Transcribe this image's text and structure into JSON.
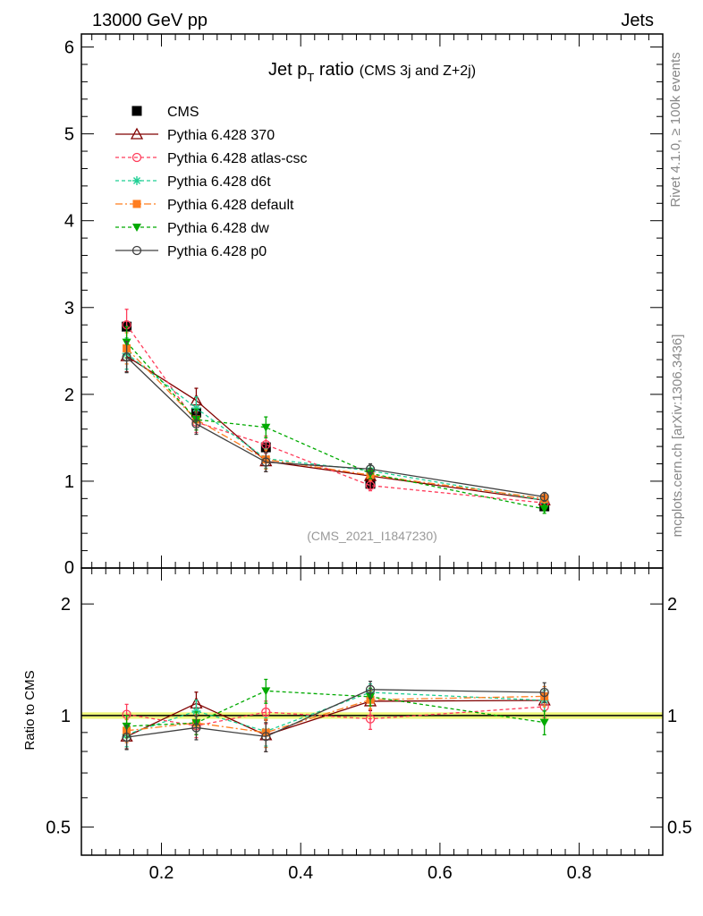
{
  "header": {
    "left": "13000 GeV pp",
    "right": "Jets"
  },
  "side_labels": {
    "rivet": "Rivet 4.1.0, ≥ 100k events",
    "mcplots": "mcplots.cern.ch [arXiv:1306.3436]"
  },
  "chart_data": {
    "type": "line",
    "title_main": "Jet p",
    "title_sub": "T",
    "title_rest": " ratio",
    "title_note": "(CMS 3j and Z+2j)",
    "analysis_id": "(CMS_2021_I1847230)",
    "ratio_ylabel": "Ratio to CMS",
    "xlim": [
      0.085,
      0.92
    ],
    "main_ylim": [
      0,
      6.15
    ],
    "ratio_ylim": [
      0.42,
      2.5
    ],
    "x_ticks": [
      0.2,
      0.4,
      0.6,
      0.8
    ],
    "x_tick_labels": [
      "0.2",
      "0.4",
      "0.6",
      "0.8"
    ],
    "main_y_ticks": [
      1,
      2,
      3,
      4,
      5,
      6
    ],
    "main_y_tick_labels": [
      "1",
      "2",
      "3",
      "4",
      "5",
      "6"
    ],
    "main_y_zero_label": "0",
    "ratio_y_ticks": [
      0.5,
      1,
      2
    ],
    "ratio_y_tick_labels": [
      "0.5",
      "1",
      "2"
    ],
    "x": [
      0.15,
      0.25,
      0.35,
      0.5,
      0.75
    ],
    "data": {
      "name": "CMS",
      "values": [
        2.78,
        1.79,
        1.39,
        0.97,
        0.71
      ],
      "errors": [
        0.05,
        0.05,
        0.04,
        0.04,
        0.03
      ],
      "color": "#000000"
    },
    "series": [
      {
        "name": "Pythia 6.428 370",
        "color": "#800000",
        "marker": "triangle-open",
        "dash": "",
        "values": [
          2.44,
          1.93,
          1.23,
          1.06,
          0.78
        ],
        "errors": [
          0.18,
          0.14,
          0.12,
          0.06,
          0.05
        ]
      },
      {
        "name": "Pythia 6.428 atlas-csc",
        "color": "#ff3c5a",
        "marker": "circle-open",
        "dash": "4,3",
        "values": [
          2.8,
          1.68,
          1.42,
          0.95,
          0.75
        ],
        "errors": [
          0.18,
          0.12,
          0.1,
          0.06,
          0.05
        ]
      },
      {
        "name": "Pythia 6.428 d6t",
        "color": "#1fcf94",
        "marker": "star",
        "dash": "4,3",
        "values": [
          2.47,
          1.84,
          1.26,
          1.12,
          0.78
        ],
        "errors": [
          0.18,
          0.13,
          0.11,
          0.06,
          0.05
        ]
      },
      {
        "name": "Pythia 6.428 default",
        "color": "#ff7d1f",
        "marker": "square",
        "dash": "8,3,2,3",
        "values": [
          2.53,
          1.71,
          1.25,
          1.07,
          0.8
        ],
        "errors": [
          0.18,
          0.12,
          0.11,
          0.06,
          0.05
        ]
      },
      {
        "name": "Pythia 6.428 dw",
        "color": "#00aa00",
        "marker": "triangle-down",
        "dash": "4,3",
        "values": [
          2.6,
          1.71,
          1.62,
          1.09,
          0.68
        ],
        "errors": [
          0.18,
          0.12,
          0.12,
          0.06,
          0.05
        ]
      },
      {
        "name": "Pythia 6.428 p0",
        "color": "#404040",
        "marker": "circle-open",
        "dash": "",
        "values": [
          2.43,
          1.66,
          1.22,
          1.14,
          0.82
        ],
        "errors": [
          0.18,
          0.12,
          0.11,
          0.06,
          0.05
        ]
      }
    ]
  }
}
